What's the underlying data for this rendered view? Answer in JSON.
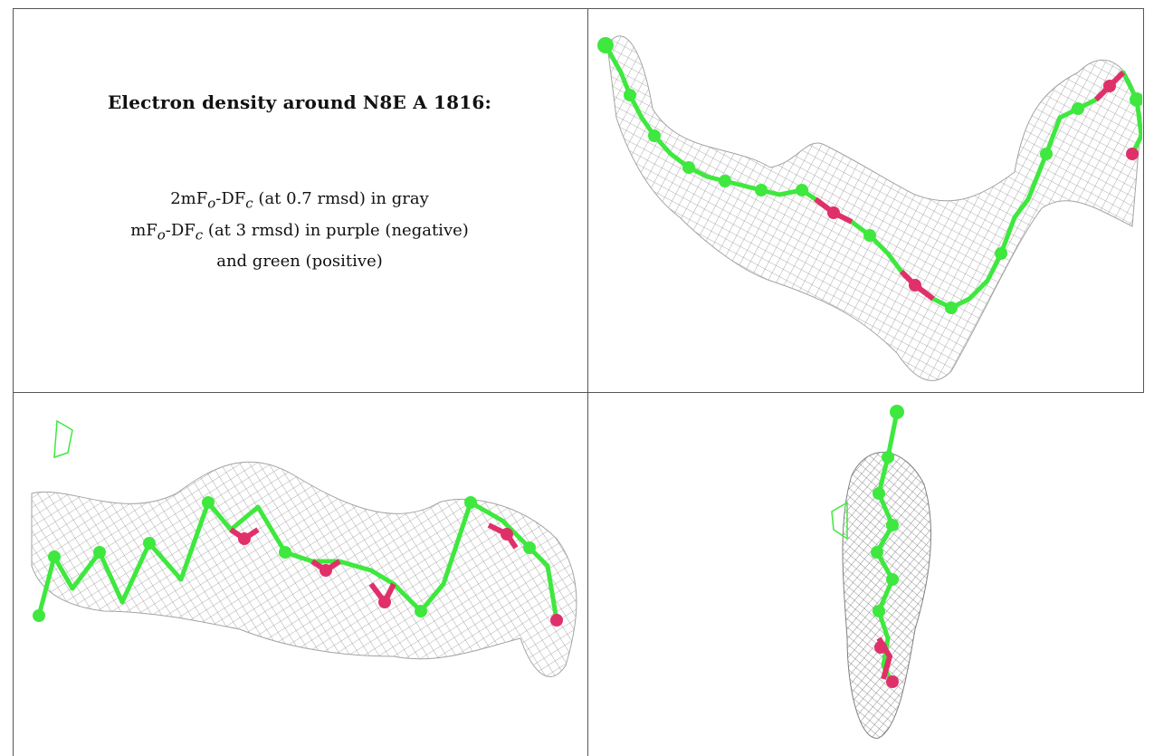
{
  "caption": {
    "title": "Electron density around N8E A 1816:",
    "line1_prefix": "2mF",
    "line1_sub_o": "o",
    "line1_mid": "-DF",
    "line1_sub_c": "c",
    "line1_suffix": " (at 0.7 rmsd) in gray",
    "line2_prefix": "mF",
    "line2_sub_o": "o",
    "line2_mid": "-DF",
    "line2_sub_c": "c",
    "line2_suffix": " (at 3 rmsd) in purple (negative)",
    "line3": "and green (positive)"
  },
  "colors": {
    "mesh": "#8a8a8a",
    "carbon": "#3ee83e",
    "oxygen": "#e0306a",
    "border": "#555555"
  },
  "panels": [
    {
      "name": "view-top-right",
      "content": "molecule-density-view"
    },
    {
      "name": "view-bottom-left",
      "content": "molecule-density-view"
    },
    {
      "name": "view-bottom-right",
      "content": "molecule-density-view"
    }
  ]
}
